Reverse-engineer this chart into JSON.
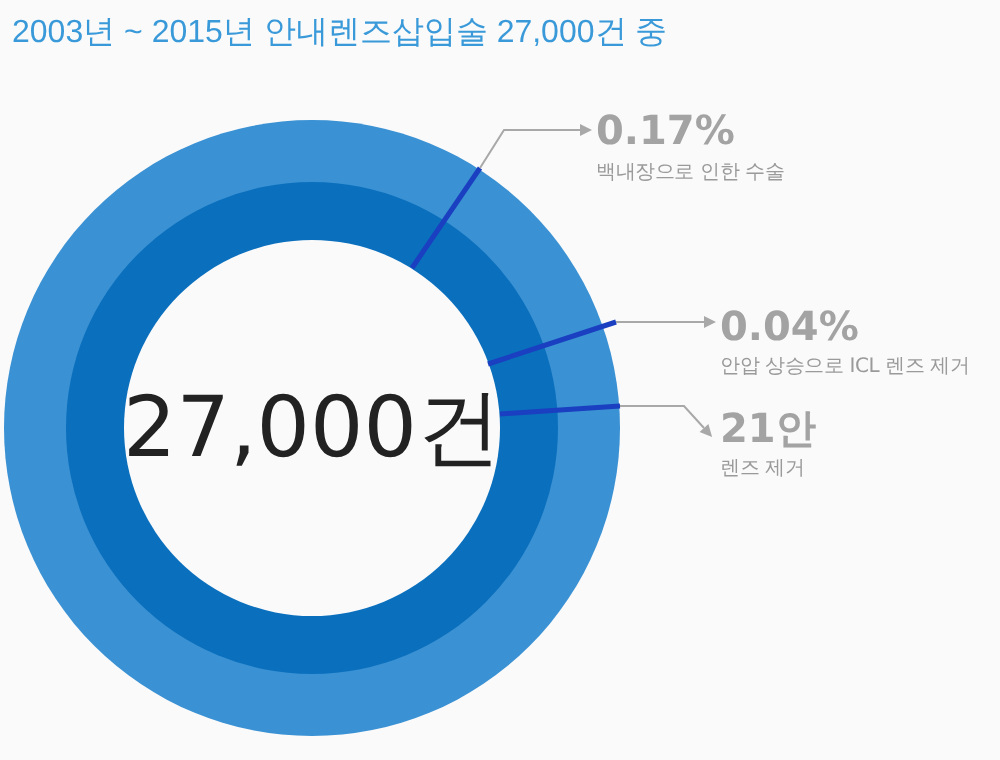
{
  "chart_data": {
    "type": "other",
    "title": "2003년 ~ 2015년 안내렌즈삽입술 27,000건 중",
    "categories": [
      "백내장으로 인한 수술",
      "안압 상승으로 ICL 렌즈 제거",
      "렌즈 제거"
    ],
    "values": [
      0.17,
      0.04,
      21
    ],
    "value_labels": [
      "0.17%",
      "0.04%",
      "21안"
    ],
    "annotations": [
      "27,000건"
    ]
  }
}
